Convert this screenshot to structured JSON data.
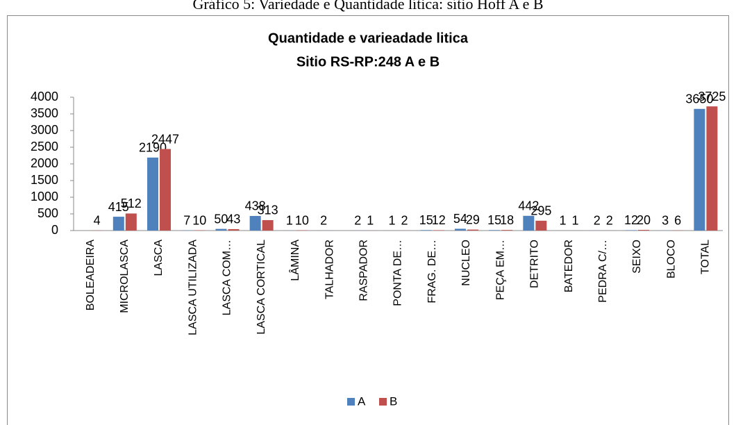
{
  "caption": "Gráfico 5: Variedade e Quantidade lítica: sítio Hoff A e B",
  "chart_data": {
    "type": "bar",
    "title": [
      "Quantidade e varieadade litica",
      "Sitio RS-RP:248 A e B"
    ],
    "categories": [
      "BOLEADEIRA",
      "MICROLASCA",
      "LASCA",
      "LASCA UTILIZADA",
      "LASCA COM…",
      "LASCA CORTICAL",
      "LÂMINA",
      "TALHADOR",
      "RASPADOR",
      "PONTA DE…",
      "FRAG. DE…",
      "NUCLEO",
      "PEÇA EM…",
      "DETRITO",
      "BATEDOR",
      "PEDRA C/…",
      "SEIXO",
      "BLOCO",
      "TOTAL"
    ],
    "series": [
      {
        "name": "A",
        "color": "#4f81bd",
        "values": [
          null,
          415,
          2190,
          7,
          50,
          438,
          1,
          2,
          2,
          1,
          15,
          54,
          15,
          442,
          1,
          2,
          12,
          3,
          3650
        ]
      },
      {
        "name": "B",
        "color": "#c0504d",
        "values": [
          4,
          512,
          2447,
          10,
          43,
          313,
          10,
          null,
          1,
          2,
          12,
          29,
          18,
          295,
          1,
          2,
          20,
          6,
          3725
        ]
      }
    ],
    "ylim": [
      0,
      4000
    ],
    "yticks": [
      0,
      500,
      1000,
      1500,
      2000,
      2500,
      3000,
      3500,
      4000
    ],
    "legend": "bottom"
  }
}
